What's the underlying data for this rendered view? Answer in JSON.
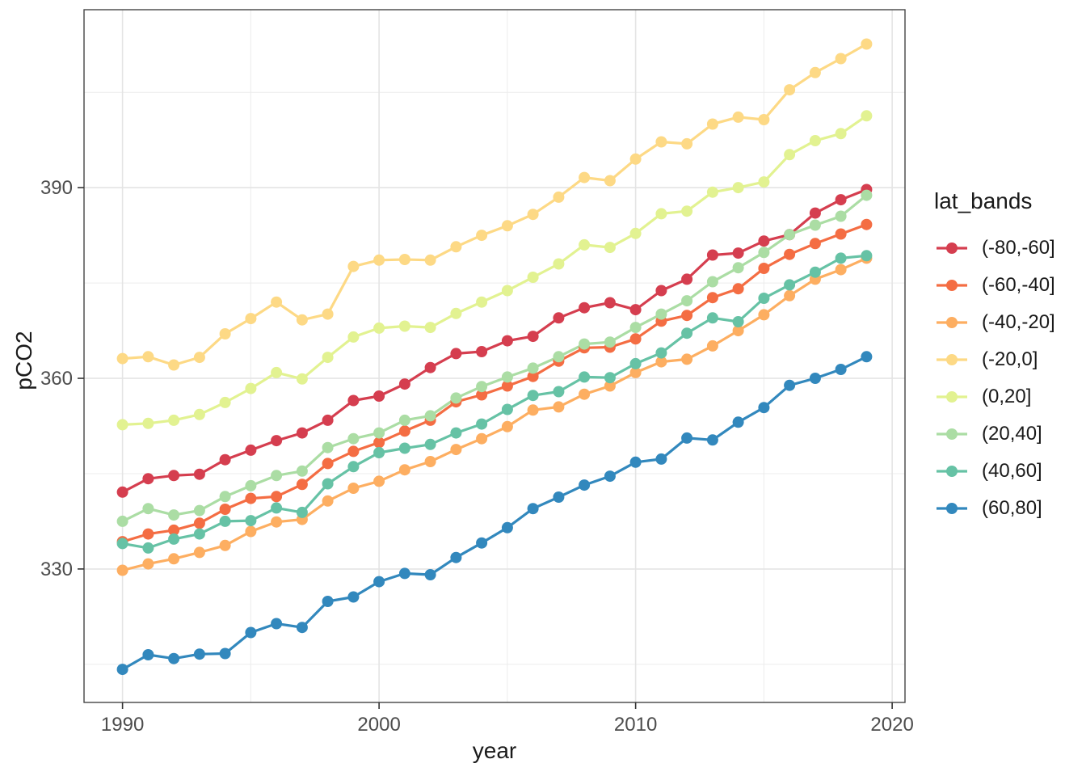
{
  "figure": {
    "xlabel": "year",
    "ylabel": "pCO2",
    "legend_title": "lat_bands"
  },
  "chart_data": {
    "type": "line",
    "title": "",
    "xlabel": "year",
    "ylabel": "pCO2",
    "grid": true,
    "marker": "circle",
    "legend": {
      "title": "lat_bands",
      "position": "right"
    },
    "x_axis": {
      "range": [
        1988.5,
        2020.5
      ],
      "ticks": [
        1990,
        2000,
        2010,
        2020
      ],
      "tick_labels": [
        "1990",
        "2000",
        "2010",
        "2020"
      ],
      "minor": [
        1995,
        2005,
        2015
      ]
    },
    "y_axis": {
      "range": [
        309,
        418
      ],
      "ticks": [
        330,
        360,
        390
      ],
      "tick_labels": [
        "330",
        "360",
        "390"
      ],
      "minor": [
        315,
        345,
        375,
        405
      ]
    },
    "x": [
      1990,
      1991,
      1992,
      1993,
      1994,
      1995,
      1996,
      1997,
      1998,
      1999,
      2000,
      2001,
      2002,
      2003,
      2004,
      2005,
      2006,
      2007,
      2008,
      2009,
      2010,
      2011,
      2012,
      2013,
      2014,
      2015,
      2016,
      2017,
      2018,
      2019
    ],
    "series": [
      {
        "name": "(-80,-60]",
        "color": "#d53e4f",
        "values": [
          342.1,
          344.2,
          344.7,
          344.9,
          347.2,
          348.7,
          350.2,
          351.4,
          353.4,
          356.5,
          357.2,
          359.1,
          361.7,
          363.9,
          364.2,
          365.9,
          366.6,
          369.5,
          371.1,
          371.9,
          370.8,
          373.8,
          375.6,
          379.4,
          379.7,
          381.6,
          382.6,
          386.0,
          388.1,
          389.7
        ]
      },
      {
        "name": "(-60,-40]",
        "color": "#f46d43",
        "values": [
          334.3,
          335.5,
          336.1,
          337.2,
          339.4,
          341.1,
          341.4,
          343.3,
          346.6,
          348.5,
          349.9,
          351.7,
          353.4,
          356.3,
          357.4,
          358.8,
          360.3,
          362.7,
          364.8,
          364.9,
          366.2,
          369.0,
          369.9,
          372.7,
          374.1,
          377.3,
          379.5,
          381.2,
          382.7,
          384.2
        ]
      },
      {
        "name": "(-40,-20]",
        "color": "#fdae61",
        "values": [
          329.8,
          330.8,
          331.6,
          332.6,
          333.7,
          335.9,
          337.4,
          337.8,
          340.7,
          342.7,
          343.8,
          345.6,
          346.9,
          348.8,
          350.5,
          352.4,
          355.0,
          355.5,
          357.5,
          358.8,
          360.9,
          362.6,
          363.0,
          365.1,
          367.5,
          370.0,
          373.0,
          375.6,
          377.1,
          378.9
        ]
      },
      {
        "name": "(-20,0]",
        "color": "#fdd985",
        "values": [
          363.1,
          363.4,
          362.1,
          363.3,
          367.0,
          369.4,
          372.0,
          369.2,
          370.1,
          377.6,
          378.6,
          378.7,
          378.6,
          380.7,
          382.5,
          384.0,
          385.8,
          388.5,
          391.6,
          391.1,
          394.5,
          397.2,
          396.9,
          400.0,
          401.1,
          400.7,
          405.4,
          408.1,
          410.3,
          412.6
        ]
      },
      {
        "name": "(0,20]",
        "color": "#e2f291",
        "values": [
          352.7,
          352.9,
          353.4,
          354.3,
          356.2,
          358.4,
          360.9,
          359.9,
          363.3,
          366.5,
          367.9,
          368.2,
          368.0,
          370.2,
          372.0,
          373.8,
          375.9,
          378.0,
          381.0,
          380.6,
          382.8,
          385.9,
          386.3,
          389.3,
          390.0,
          390.9,
          395.2,
          397.4,
          398.5,
          401.3
        ]
      },
      {
        "name": "(20,40]",
        "color": "#abdda4",
        "values": [
          337.5,
          339.5,
          338.5,
          339.2,
          341.4,
          343.1,
          344.7,
          345.4,
          349.1,
          350.5,
          351.4,
          353.4,
          354.1,
          356.9,
          358.7,
          360.2,
          361.6,
          363.4,
          365.4,
          365.7,
          368.0,
          370.1,
          372.2,
          375.2,
          377.4,
          379.8,
          382.6,
          384.1,
          385.5,
          388.8
        ]
      },
      {
        "name": "(40,60]",
        "color": "#66c2a5",
        "values": [
          334.0,
          333.3,
          334.7,
          335.5,
          337.5,
          337.6,
          339.6,
          338.9,
          343.4,
          346.1,
          348.3,
          349.0,
          349.6,
          351.4,
          352.8,
          355.1,
          357.3,
          357.9,
          360.2,
          360.1,
          362.3,
          364.0,
          367.1,
          369.5,
          368.9,
          372.6,
          374.7,
          376.7,
          378.9,
          379.3
        ]
      },
      {
        "name": "(60,80]",
        "color": "#3288bd",
        "values": [
          314.2,
          316.5,
          315.9,
          316.6,
          316.7,
          320.0,
          321.4,
          320.8,
          324.9,
          325.6,
          328.0,
          329.3,
          329.1,
          331.8,
          334.1,
          336.5,
          339.5,
          341.3,
          343.2,
          344.6,
          346.8,
          347.3,
          350.6,
          350.3,
          353.1,
          355.4,
          358.9,
          360.0,
          361.4,
          363.4
        ]
      }
    ]
  }
}
